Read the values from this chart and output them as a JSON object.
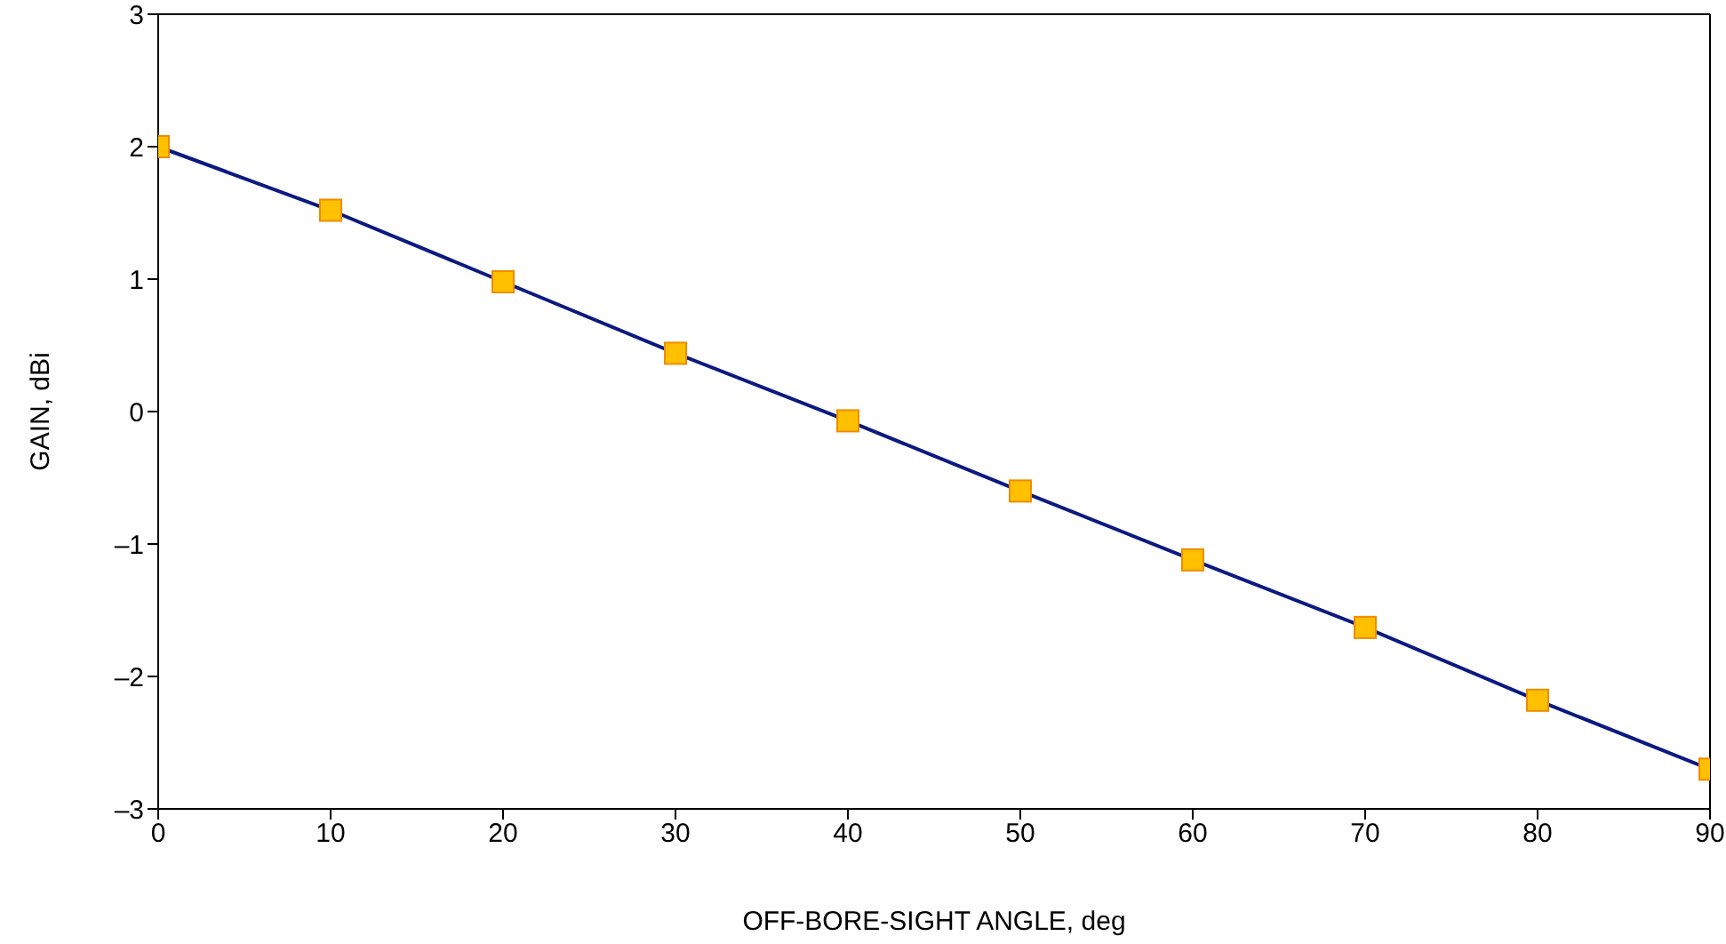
{
  "chart_data": {
    "type": "line",
    "xlabel": "OFF-BORE-SIGHT ANGLE, deg",
    "ylabel": "GAIN, dBi",
    "x": [
      0,
      10,
      20,
      30,
      40,
      50,
      60,
      70,
      80,
      90
    ],
    "series": [
      {
        "color": "#0a1a80",
        "values": [
          2.0,
          1.52,
          0.98,
          0.44,
          -0.07,
          -0.6,
          -1.12,
          -1.63,
          -2.18,
          -2.7
        ]
      }
    ],
    "xlim": [
      0,
      90
    ],
    "xticks": [
      0,
      10,
      20,
      30,
      40,
      50,
      60,
      70,
      80,
      90
    ],
    "ylim": [
      -3,
      3
    ],
    "yticks": [
      {
        "value": -3,
        "label": "–3"
      },
      {
        "value": -2,
        "label": "–2"
      },
      {
        "value": -1,
        "label": "–1"
      },
      0,
      1,
      2,
      3
    ],
    "grid": false,
    "legend": false,
    "marker": "square",
    "line_style": "solid"
  }
}
